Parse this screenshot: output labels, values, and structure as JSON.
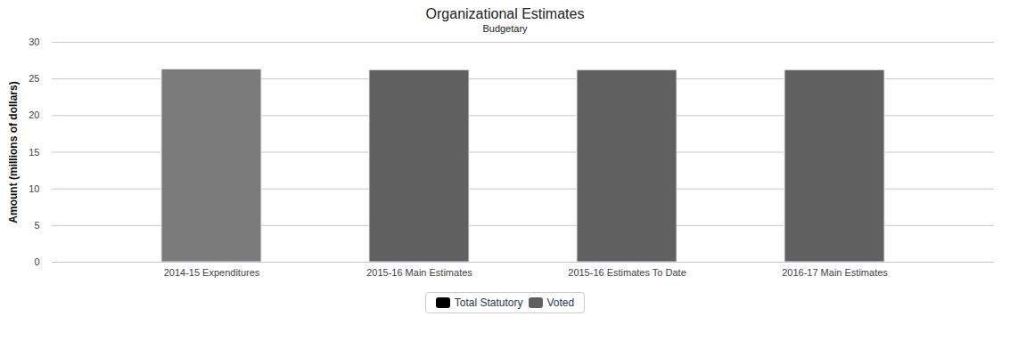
{
  "chart_data": {
    "type": "bar",
    "title": "Organizational Estimates",
    "subtitle": "Budgetary",
    "y_label": "Amount (millions of dollars)",
    "categories": [
      "2014-15 Expenditures",
      "2015-16 Main Estimates",
      "2015-16 Estimates To Date",
      "2016-17 Main Estimates"
    ],
    "series": [
      {
        "name": "Total Statutory",
        "color": "#000000",
        "values": [
          0,
          0,
          0,
          0
        ]
      },
      {
        "name": "Voted",
        "color": "#606060",
        "colors": [
          "#7a7a7a",
          "#606060",
          "#606060",
          "#606060"
        ],
        "values": [
          26.3,
          26.2,
          26.2,
          26.2
        ]
      }
    ],
    "stacked": true,
    "ylim": [
      0,
      30
    ],
    "yticks": [
      0,
      5,
      10,
      15,
      20,
      25,
      30
    ],
    "grid": true,
    "legend": "bottom"
  }
}
